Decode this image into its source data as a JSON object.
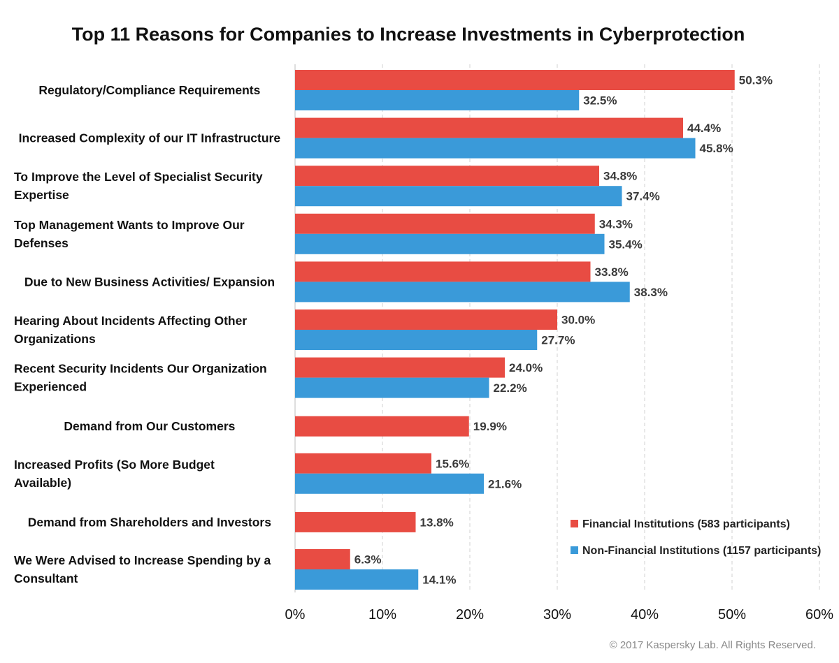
{
  "chart_data": {
    "type": "bar",
    "orientation": "horizontal",
    "title": "Top 11 Reasons for Companies to Increase Investments in Cyberprotection",
    "xlim": [
      0,
      60
    ],
    "x_ticks": [
      "0%",
      "10%",
      "20%",
      "30%",
      "40%",
      "50%",
      "60%"
    ],
    "grid": true,
    "legend_position": "bottom-right",
    "categories": [
      [
        "Regulatory/Compliance Requirements"
      ],
      [
        "Increased Complexity of our IT Infrastructure"
      ],
      [
        "To Improve the Level of Specialist Security",
        "Expertise"
      ],
      [
        "Top Management Wants to Improve Our",
        "Defenses"
      ],
      [
        "Due to New Business Activities/ Expansion"
      ],
      [
        "Hearing About Incidents Affecting Other",
        "Organizations"
      ],
      [
        "Recent Security Incidents Our Organization",
        "Experienced"
      ],
      [
        "Demand from Our Customers"
      ],
      [
        "Increased Profits (So More Budget",
        "Available)"
      ],
      [
        "Demand from Shareholders and Investors"
      ],
      [
        "We Were Advised to Increase Spending by a",
        "Consultant"
      ]
    ],
    "series": [
      {
        "name": "Financial Institutions (583 participants)",
        "color": "#e84c43",
        "values": [
          50.3,
          44.4,
          34.8,
          34.3,
          33.8,
          30.0,
          24.0,
          19.9,
          15.6,
          13.8,
          6.3
        ],
        "labels": [
          "50.3%",
          "44.4%",
          "34.8%",
          "34.3%",
          "33.8%",
          "30.0%",
          "24.0%",
          "19.9%",
          "15.6%",
          "13.8%",
          "6.3%"
        ]
      },
      {
        "name": "Non-Financial Institutions (1157 participants)",
        "color": "#3a9ad9",
        "values": [
          32.5,
          45.8,
          37.4,
          35.4,
          38.3,
          27.7,
          22.2,
          null,
          21.6,
          null,
          14.1
        ],
        "labels": [
          "32.5%",
          "45.8%",
          "37.4%",
          "35.4%",
          "38.3%",
          "27.7%",
          "22.2%",
          null,
          "21.6%",
          null,
          "14.1%"
        ]
      }
    ]
  },
  "footer": {
    "copyright": "© 2017 Kaspersky Lab. All Rights Reserved."
  }
}
